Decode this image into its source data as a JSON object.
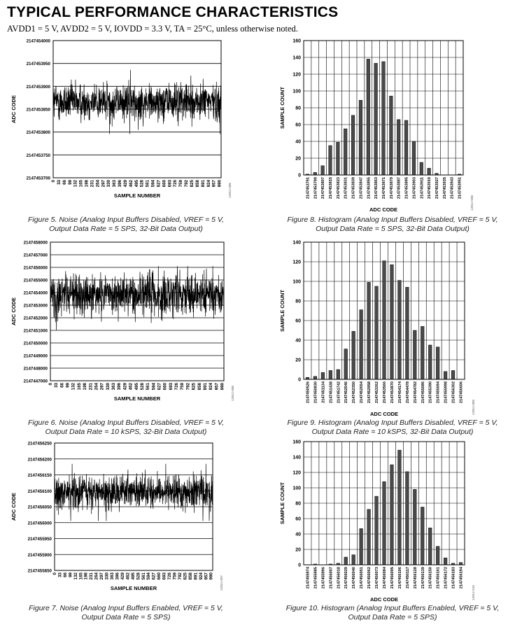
{
  "header": {
    "title": "TYPICAL PERFORMANCE CHARACTERISTICS",
    "conditions": "AVDD1 = 5 V, AVDD2 = 5 V, IOVDD = 3.3 V, TA = 25°C, unless otherwise noted."
  },
  "figures": [
    {
      "caption_line1": "Figure 5. Noise (Analog Input Buffers Disabled, VREF = 5 V,",
      "caption_line2": "Output Data Rate = 5 SPS, 32-Bit Data Output)",
      "code": "12912-005"
    },
    {
      "caption_line1": "Figure 8. Histogram (Analog Input Buffers Disabled, VREF = 5 V,",
      "caption_line2": "Output Data Rate = 5 SPS, 32-Bit Data Output)",
      "code": "12912-008"
    },
    {
      "caption_line1": "Figure 6. Noise (Analog Input Buffers Disabled, VREF = 5 V,",
      "caption_line2": "Output Data Rate = 10 kSPS, 32-Bit Data Output)",
      "code": "12912-006"
    },
    {
      "caption_line1": "Figure 9. Histogram (Analog Input Buffers Disabled, VREF = 5 V,",
      "caption_line2": "Output Data Rate = 10 kSPS, 32-Bit Data Output)",
      "code": "12912-009"
    },
    {
      "caption_line1": "Figure 7. Noise (Analog Input Buffers Enabled, VREF = 5 V,",
      "caption_line2": "Output Data Rate = 5 SPS)",
      "code": "12912-007"
    },
    {
      "caption_line1": "Figure 10. Histogram (Analog Input Buffers Enabled, VREF = 5 V,",
      "caption_line2": "Output Data Rate = 5 SPS)",
      "code": "12912-010"
    }
  ],
  "chart_data": [
    {
      "id": "fig5",
      "type": "line",
      "xlabel": "SAMPLE NUMBER",
      "ylabel": "ADC CODE",
      "xlim": [
        0,
        1000
      ],
      "ylim": [
        2147453700,
        2147454000
      ],
      "xticks": [
        0,
        33,
        66,
        99,
        132,
        165,
        198,
        231,
        264,
        297,
        330,
        363,
        396,
        429,
        462,
        495,
        528,
        561,
        594,
        627,
        660,
        693,
        726,
        759,
        792,
        825,
        858,
        891,
        924,
        957,
        990
      ],
      "yticks": [
        2147453700,
        2147453750,
        2147453800,
        2147453850,
        2147453900,
        2147453950,
        2147454000
      ],
      "grid": "horizontal",
      "noise": {
        "samples": 1000,
        "mean": 2147453866,
        "spread": 22,
        "min": 2147453795,
        "max": 2147453952
      }
    },
    {
      "id": "fig8",
      "type": "bar",
      "xlabel": "ADC CODE",
      "ylabel": "SAMPLE COUNT",
      "ylim": [
        0,
        160
      ],
      "yticks": [
        0,
        20,
        40,
        60,
        80,
        100,
        120,
        140,
        160
      ],
      "categories": [
        "2147453791",
        "2147453799",
        "2147453807",
        "2147453815",
        "2147453823",
        "2147453831",
        "2147453839",
        "2147453847",
        "2147453855",
        "2147453863",
        "2147453871",
        "2147453879",
        "2147453887",
        "2147453895",
        "2147453903",
        "2147453911",
        "2147453919",
        "2147453927",
        "2147453935",
        "2147453943",
        "2147453951"
      ],
      "values": [
        1,
        3,
        11,
        35,
        39,
        55,
        71,
        89,
        138,
        133,
        135,
        94,
        66,
        65,
        40,
        15,
        8,
        2,
        0,
        0,
        1
      ],
      "grid": "both"
    },
    {
      "id": "fig6",
      "type": "line",
      "xlabel": "SAMPLE NUMBER",
      "ylabel": "ADC CODE",
      "xlim": [
        0,
        1000
      ],
      "ylim": [
        2147447000,
        2147458000
      ],
      "xticks": [
        0,
        33,
        66,
        99,
        132,
        165,
        198,
        231,
        264,
        297,
        330,
        363,
        396,
        429,
        462,
        495,
        528,
        561,
        594,
        627,
        660,
        693,
        726,
        759,
        792,
        825,
        858,
        891,
        924,
        957,
        990
      ],
      "yticks": [
        2147447000,
        2147448000,
        2147449000,
        2147450000,
        2147451000,
        2147452000,
        2147453000,
        2147454000,
        2147455000,
        2147456000,
        2147457000,
        2147458000
      ],
      "grid": "horizontal",
      "noise": {
        "samples": 1000,
        "mean": 2147453800,
        "spread": 900,
        "min": 2147451000,
        "max": 2147456100
      }
    },
    {
      "id": "fig9",
      "type": "bar",
      "xlabel": "ADC CODE",
      "ylabel": "SAMPLE COUNT",
      "ylim": [
        0,
        140
      ],
      "yticks": [
        0,
        20,
        40,
        60,
        80,
        100,
        120,
        140
      ],
      "categories": [
        "2147450526",
        "2147450830",
        "2147451134",
        "2147451438",
        "2147451742",
        "2147452046",
        "2147452350",
        "2147452654",
        "2147452958",
        "2147453262",
        "2147453566",
        "2147453870",
        "2147454174",
        "2147454478",
        "2147454782",
        "2147455086",
        "2147455390",
        "2147455694",
        "2147455998",
        "2147456302",
        "2147456606"
      ],
      "values": [
        2,
        3,
        7,
        9,
        10,
        31,
        49,
        71,
        99,
        95,
        121,
        117,
        101,
        94,
        50,
        54,
        35,
        33,
        8,
        9,
        0
      ],
      "grid": "both"
    },
    {
      "id": "fig7",
      "type": "line",
      "xlabel": "SAMPLE NUMBER",
      "ylabel": "ADC CODE",
      "xlim": [
        0,
        1000
      ],
      "ylim": [
        2147455850,
        2147456250
      ],
      "xticks": [
        0,
        33,
        66,
        99,
        132,
        165,
        198,
        231,
        264,
        297,
        330,
        363,
        396,
        429,
        462,
        495,
        528,
        561,
        594,
        627,
        660,
        693,
        726,
        759,
        792,
        825,
        858,
        891,
        924,
        957,
        990
      ],
      "yticks": [
        2147455850,
        2147455900,
        2147455950,
        2147456000,
        2147456050,
        2147456100,
        2147456150,
        2147456200,
        2147456250
      ],
      "grid": "horizontal",
      "noise": {
        "samples": 1000,
        "mean": 2147456095,
        "spread": 28,
        "min": 2147455995,
        "max": 2147456190
      }
    },
    {
      "id": "fig10",
      "type": "bar",
      "xlabel": "ADC CODE",
      "ylabel": "SAMPLE COUNT",
      "ylim": [
        0,
        160
      ],
      "yticks": [
        0,
        20,
        40,
        60,
        80,
        100,
        120,
        140,
        160
      ],
      "categories": [
        "2147455974",
        "2147455985",
        "2147455996",
        "2147456007",
        "2147456018",
        "2147456029",
        "2147456040",
        "2147456051",
        "2147456062",
        "2147456073",
        "2147456084",
        "2147456095",
        "2147456106",
        "2147456117",
        "2147456128",
        "2147456139",
        "2147456150",
        "2147456161",
        "2147456172",
        "2147456183",
        "2147456194"
      ],
      "values": [
        0,
        1,
        0,
        1,
        2,
        10,
        13,
        47,
        72,
        89,
        108,
        130,
        149,
        121,
        98,
        75,
        48,
        24,
        9,
        2,
        3
      ],
      "grid": "both"
    }
  ]
}
